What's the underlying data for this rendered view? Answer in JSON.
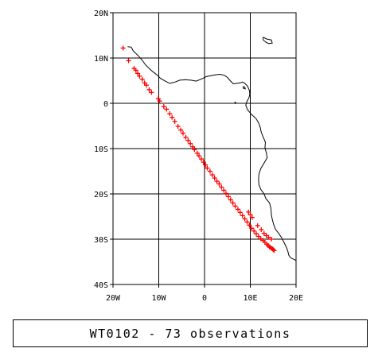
{
  "map": {
    "lon_range": [
      -20,
      20
    ],
    "lat_range": [
      -40,
      20
    ],
    "grid": true,
    "lon_ticks": [
      {
        "value": -20,
        "label": "20W"
      },
      {
        "value": -10,
        "label": "10W"
      },
      {
        "value": 0,
        "label": "0"
      },
      {
        "value": 10,
        "label": "10E"
      },
      {
        "value": 20,
        "label": "20E"
      }
    ],
    "lat_ticks": [
      {
        "value": 20,
        "label": "20N"
      },
      {
        "value": 10,
        "label": "10N"
      },
      {
        "value": 0,
        "label": "0"
      },
      {
        "value": -10,
        "label": "10S"
      },
      {
        "value": -20,
        "label": "20S"
      },
      {
        "value": -30,
        "label": "30S"
      },
      {
        "value": -40,
        "label": "40S"
      }
    ],
    "marker_color": "#ff0000",
    "marker_symbol": "plus",
    "coastline_color": "#000000",
    "observations": [
      {
        "lon": -17.8,
        "lat": 12.2
      },
      {
        "lon": -16.6,
        "lat": 9.4
      },
      {
        "lon": -15.4,
        "lat": 7.7
      },
      {
        "lon": -15.0,
        "lat": 7.3
      },
      {
        "lon": -14.6,
        "lat": 6.6
      },
      {
        "lon": -14.2,
        "lat": 6.0
      },
      {
        "lon": -13.6,
        "lat": 5.3
      },
      {
        "lon": -13.1,
        "lat": 4.5
      },
      {
        "lon": -12.7,
        "lat": 4.0
      },
      {
        "lon": -12.1,
        "lat": 3.0
      },
      {
        "lon": -11.6,
        "lat": 2.4
      },
      {
        "lon": -10.1,
        "lat": 1.0
      },
      {
        "lon": -9.8,
        "lat": 0.5
      },
      {
        "lon": -8.9,
        "lat": -0.7
      },
      {
        "lon": -8.3,
        "lat": -1.3
      },
      {
        "lon": -7.6,
        "lat": -2.3
      },
      {
        "lon": -7.1,
        "lat": -3.1
      },
      {
        "lon": -6.5,
        "lat": -4.0
      },
      {
        "lon": -5.8,
        "lat": -5.1
      },
      {
        "lon": -5.2,
        "lat": -5.9
      },
      {
        "lon": -4.7,
        "lat": -6.6
      },
      {
        "lon": -4.1,
        "lat": -7.5
      },
      {
        "lon": -3.6,
        "lat": -8.2
      },
      {
        "lon": -3.1,
        "lat": -8.9
      },
      {
        "lon": -2.6,
        "lat": -9.6
      },
      {
        "lon": -2.2,
        "lat": -10.2
      },
      {
        "lon": -1.6,
        "lat": -11.0
      },
      {
        "lon": -1.2,
        "lat": -11.6
      },
      {
        "lon": -0.7,
        "lat": -12.3
      },
      {
        "lon": -0.2,
        "lat": -13.0
      },
      {
        "lon": 0.2,
        "lat": -13.6
      },
      {
        "lon": 0.6,
        "lat": -14.3
      },
      {
        "lon": 1.2,
        "lat": -15.0
      },
      {
        "lon": 1.7,
        "lat": -15.8
      },
      {
        "lon": 2.2,
        "lat": -16.5
      },
      {
        "lon": 2.7,
        "lat": -17.2
      },
      {
        "lon": 3.2,
        "lat": -17.8
      },
      {
        "lon": 3.7,
        "lat": -18.5
      },
      {
        "lon": 4.2,
        "lat": -19.2
      },
      {
        "lon": 4.7,
        "lat": -19.9
      },
      {
        "lon": 5.2,
        "lat": -20.6
      },
      {
        "lon": 5.7,
        "lat": -21.3
      },
      {
        "lon": 6.2,
        "lat": -22.0
      },
      {
        "lon": 6.7,
        "lat": -22.7
      },
      {
        "lon": 7.3,
        "lat": -23.4
      },
      {
        "lon": 7.8,
        "lat": -24.1
      },
      {
        "lon": 8.3,
        "lat": -24.8
      },
      {
        "lon": 8.8,
        "lat": -25.5
      },
      {
        "lon": 9.3,
        "lat": -26.2
      },
      {
        "lon": 9.8,
        "lat": -26.9
      },
      {
        "lon": 10.3,
        "lat": -27.6
      },
      {
        "lon": 10.8,
        "lat": -28.2
      },
      {
        "lon": 11.3,
        "lat": -28.8
      },
      {
        "lon": 11.8,
        "lat": -29.4
      },
      {
        "lon": 12.3,
        "lat": -29.9
      },
      {
        "lon": 12.8,
        "lat": -30.3
      },
      {
        "lon": 13.2,
        "lat": -30.7
      },
      {
        "lon": 13.6,
        "lat": -31.1
      },
      {
        "lon": 13.9,
        "lat": -31.4
      },
      {
        "lon": 14.2,
        "lat": -31.7
      },
      {
        "lon": 14.5,
        "lat": -31.9
      },
      {
        "lon": 14.8,
        "lat": -32.1
      },
      {
        "lon": 15.0,
        "lat": -32.3
      },
      {
        "lon": 15.2,
        "lat": -32.5
      },
      {
        "lon": 9.6,
        "lat": -24.0
      },
      {
        "lon": 10.0,
        "lat": -24.6
      },
      {
        "lon": 10.4,
        "lat": -25.2
      },
      {
        "lon": 11.6,
        "lat": -27.0
      },
      {
        "lon": 12.4,
        "lat": -27.9
      },
      {
        "lon": 13.0,
        "lat": -28.7
      },
      {
        "lon": 13.5,
        "lat": -29.2
      },
      {
        "lon": 14.0,
        "lat": -29.6
      },
      {
        "lon": 14.6,
        "lat": -30.0
      }
    ],
    "coastline": [
      [
        -16.8,
        12.5
      ],
      [
        -16.0,
        12.4
      ],
      [
        -15.6,
        11.6
      ],
      [
        -15.0,
        11.0
      ],
      [
        -14.4,
        10.4
      ],
      [
        -13.6,
        9.5
      ],
      [
        -12.9,
        8.5
      ],
      [
        -12.0,
        7.6
      ],
      [
        -11.2,
        6.9
      ],
      [
        -10.3,
        6.2
      ],
      [
        -9.6,
        5.5
      ],
      [
        -8.6,
        4.9
      ],
      [
        -7.6,
        4.4
      ],
      [
        -6.4,
        4.7
      ],
      [
        -5.4,
        5.1
      ],
      [
        -4.2,
        5.2
      ],
      [
        -3.0,
        5.1
      ],
      [
        -1.8,
        4.9
      ],
      [
        -0.6,
        5.4
      ],
      [
        0.4,
        5.9
      ],
      [
        1.4,
        6.1
      ],
      [
        2.4,
        6.3
      ],
      [
        3.4,
        6.4
      ],
      [
        4.3,
        6.2
      ],
      [
        5.0,
        5.7
      ],
      [
        5.6,
        5.0
      ],
      [
        6.3,
        4.3
      ],
      [
        7.0,
        4.4
      ],
      [
        7.8,
        4.5
      ],
      [
        8.3,
        4.7
      ],
      [
        8.8,
        4.4
      ],
      [
        9.4,
        3.8
      ],
      [
        9.8,
        2.8
      ],
      [
        9.9,
        2.0
      ],
      [
        9.7,
        1.2
      ],
      [
        9.3,
        0.5
      ],
      [
        9.0,
        -0.4
      ],
      [
        9.4,
        -1.4
      ],
      [
        10.3,
        -2.5
      ],
      [
        11.2,
        -3.3
      ],
      [
        11.8,
        -4.3
      ],
      [
        12.2,
        -5.4
      ],
      [
        12.4,
        -6.4
      ],
      [
        12.8,
        -7.4
      ],
      [
        13.3,
        -8.6
      ],
      [
        13.2,
        -9.8
      ],
      [
        13.5,
        -10.9
      ],
      [
        13.7,
        -12.0
      ],
      [
        13.0,
        -13.2
      ],
      [
        12.3,
        -14.4
      ],
      [
        11.9,
        -15.6
      ],
      [
        11.8,
        -16.8
      ],
      [
        11.9,
        -18.0
      ],
      [
        12.3,
        -19.0
      ],
      [
        13.0,
        -20.0
      ],
      [
        13.4,
        -21.0
      ],
      [
        14.2,
        -22.0
      ],
      [
        14.5,
        -23.2
      ],
      [
        14.6,
        -24.5
      ],
      [
        14.8,
        -25.6
      ],
      [
        15.1,
        -26.7
      ],
      [
        15.5,
        -27.8
      ],
      [
        16.2,
        -28.7
      ],
      [
        16.8,
        -29.6
      ],
      [
        17.3,
        -30.6
      ],
      [
        17.8,
        -31.6
      ],
      [
        18.2,
        -32.6
      ],
      [
        18.4,
        -33.5
      ],
      [
        18.8,
        -34.1
      ],
      [
        19.6,
        -34.5
      ],
      [
        20.0,
        -34.7
      ]
    ],
    "islands": [
      [
        [
          8.4,
          3.7
        ],
        [
          8.8,
          3.6
        ],
        [
          8.9,
          3.2
        ],
        [
          8.5,
          3.3
        ],
        [
          8.4,
          3.7
        ]
      ],
      [
        [
          6.6,
          0.3
        ],
        [
          6.8,
          0.2
        ],
        [
          6.7,
          0.0
        ],
        [
          6.6,
          0.3
        ]
      ],
      [
        [
          12.8,
          14.6
        ],
        [
          13.6,
          14.2
        ],
        [
          14.6,
          14.0
        ],
        [
          14.8,
          13.3
        ],
        [
          14.0,
          13.2
        ],
        [
          13.4,
          13.5
        ],
        [
          12.8,
          14.0
        ],
        [
          12.8,
          14.6
        ]
      ]
    ]
  },
  "caption": {
    "text": "WT0102 - 73 observations"
  }
}
